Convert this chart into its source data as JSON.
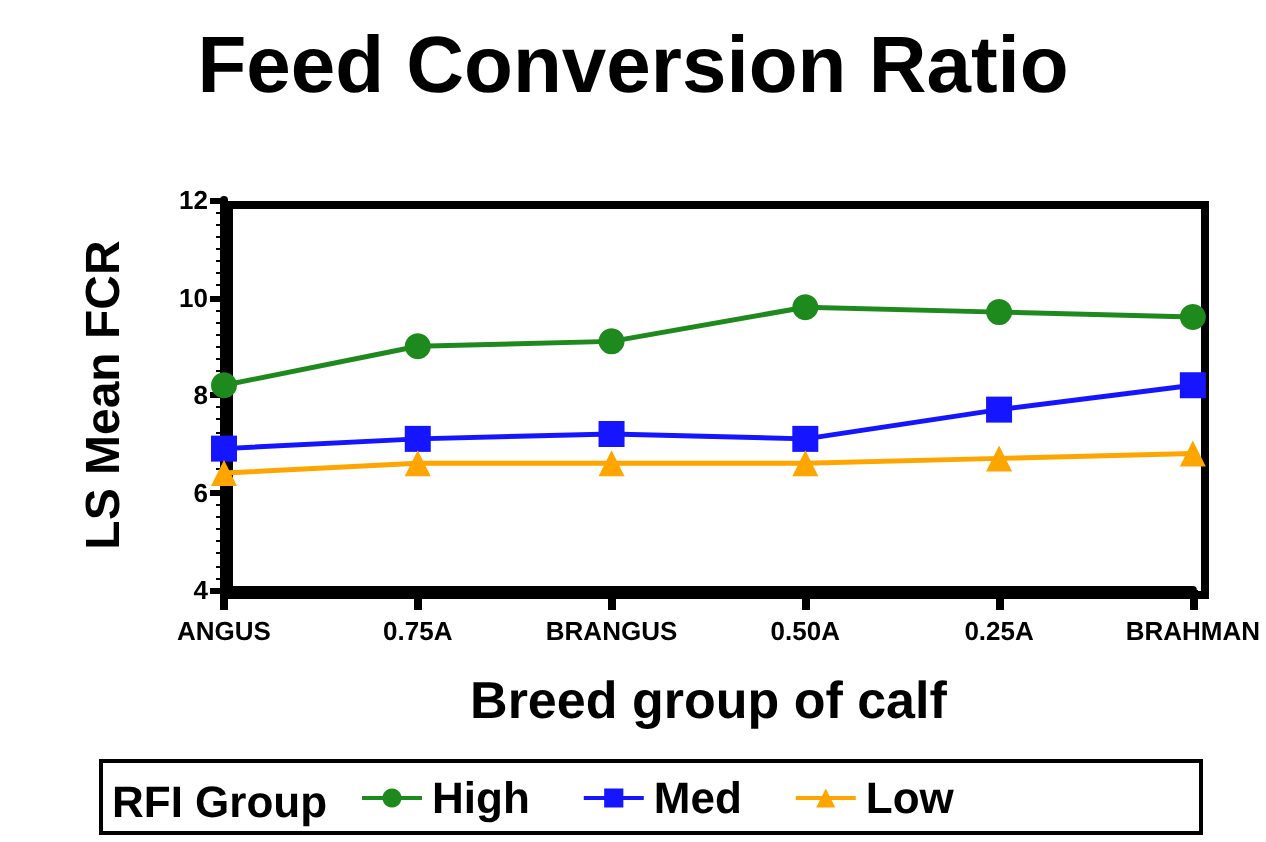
{
  "chart_data": {
    "type": "line",
    "title": "Feed Conversion Ratio",
    "xlabel": "Breed group of calf",
    "ylabel": "LS Mean FCR",
    "legend_title": "RFI Group",
    "categories": [
      "ANGUS",
      "0.75A",
      "BRANGUS",
      "0.50A",
      "0.25A",
      "BRAHMAN"
    ],
    "series": [
      {
        "name": "High",
        "color": "#1e8a1e",
        "marker": "circle",
        "values": [
          8.2,
          9.0,
          9.1,
          9.8,
          9.7,
          9.6
        ]
      },
      {
        "name": "Med",
        "color": "#1515ff",
        "marker": "square",
        "values": [
          6.9,
          7.1,
          7.2,
          7.1,
          7.7,
          8.2
        ]
      },
      {
        "name": "Low",
        "color": "#ffa500",
        "marker": "triangle",
        "values": [
          6.4,
          6.6,
          6.6,
          6.6,
          6.7,
          6.8
        ]
      }
    ],
    "ylim": [
      4,
      12
    ],
    "yticks": [
      4,
      6,
      8,
      10,
      12
    ],
    "grid": false,
    "legend": "bottom"
  }
}
